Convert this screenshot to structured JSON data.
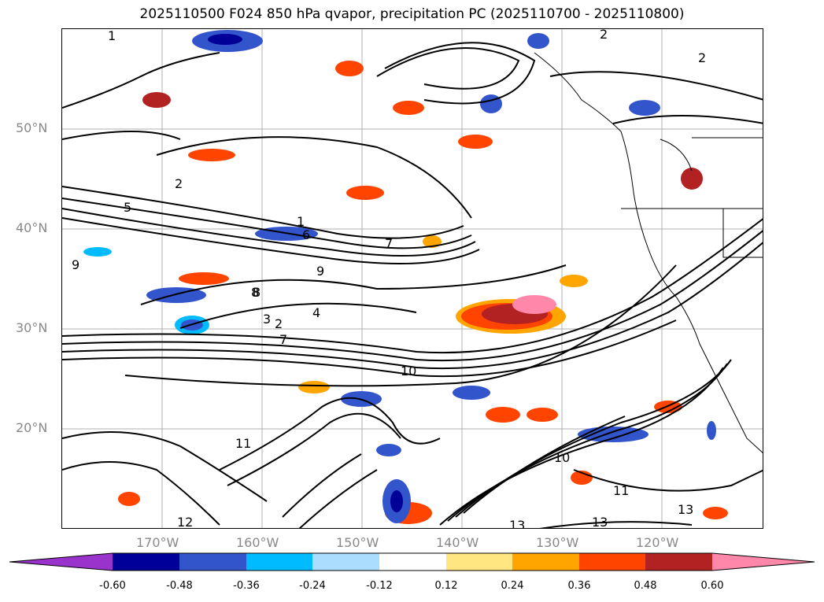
{
  "title": "2025110500 F024 850 hPa qvapor, precipitation PC (2025110700 - 2025110800)",
  "lat_labels": [
    "50°N",
    "40°N",
    "30°N",
    "20°N"
  ],
  "lon_labels": [
    "170°W",
    "160°W",
    "150°W",
    "140°W",
    "130°W",
    "120°W"
  ],
  "colorbar": {
    "ticks": [
      "-0.60",
      "-0.48",
      "-0.36",
      "-0.24",
      "-0.12",
      "0.12",
      "0.24",
      "0.36",
      "0.48",
      "0.60"
    ],
    "colors": [
      "#9933cc",
      "#000099",
      "#3355cc",
      "#00bbff",
      "#aaddff",
      "#ffffff",
      "#ffe680",
      "#ffa500",
      "#ff4400",
      "#b22222",
      "#ff88aa"
    ]
  },
  "contour_labels": [
    "1",
    "2",
    "2",
    "2",
    "5",
    "1",
    "6",
    "7",
    "9",
    "3",
    "2",
    "4",
    "7",
    "8",
    "9",
    "10",
    "11",
    "12",
    "13",
    "13",
    "13",
    "11",
    "10",
    "8"
  ]
}
